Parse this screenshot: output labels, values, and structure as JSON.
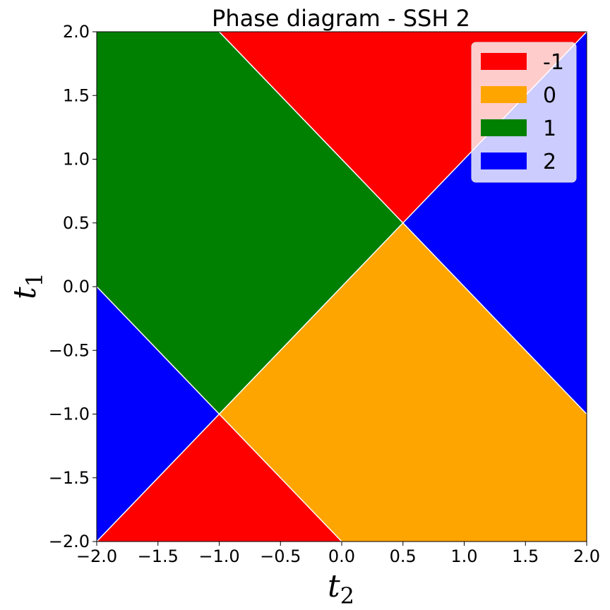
{
  "chart_data": {
    "type": "heatmap",
    "title": "Phase diagram - SSH 2",
    "xlabel": "t",
    "xlabel_sub": "2",
    "ylabel": "t",
    "ylabel_sub": "1",
    "xlim": [
      -2.0,
      2.0
    ],
    "ylim": [
      -2.0,
      2.0
    ],
    "xticks": [
      -2.0,
      -1.5,
      -1.0,
      -0.5,
      0.0,
      0.5,
      1.0,
      1.5,
      2.0
    ],
    "yticks": [
      -2.0,
      -1.5,
      -1.0,
      -0.5,
      0.0,
      0.5,
      1.0,
      1.5,
      2.0
    ],
    "xtick_labels": [
      "−2.0",
      "−1.5",
      "−1.0",
      "−0.5",
      "0.0",
      "0.5",
      "1.0",
      "1.5",
      "2.0"
    ],
    "ytick_labels": [
      "−2.0",
      "−1.5",
      "−1.0",
      "−0.5",
      "0.0",
      "0.5",
      "1.0",
      "1.5",
      "2.0"
    ],
    "grid": false,
    "legend_position": "top-right",
    "phases": [
      {
        "label": "-1",
        "color": "#ff0000"
      },
      {
        "label": "0",
        "color": "#ffa500"
      },
      {
        "label": "1",
        "color": "#008000"
      },
      {
        "label": "2",
        "color": "#0000ff"
      }
    ],
    "boundaries": [
      {
        "equation": "t1 = t2",
        "from": [
          -2.0,
          -2.0
        ],
        "to": [
          2.0,
          2.0
        ]
      },
      {
        "equation": "t1 = 1 - t2",
        "from": [
          -1.0,
          2.0
        ],
        "to": [
          2.0,
          -1.0
        ]
      },
      {
        "equation": "t1 = -1 - t2",
        "from": [
          -2.0,
          0.0
        ],
        "to": [
          0.0,
          -2.0
        ]
      }
    ],
    "regions": [
      {
        "phase": "-1",
        "vertices": [
          [
            -1.0,
            2.0
          ],
          [
            2.0,
            2.0
          ],
          [
            0.5,
            0.5
          ]
        ]
      },
      {
        "phase": "-1",
        "vertices": [
          [
            -1.0,
            -1.0
          ],
          [
            0.0,
            -2.0
          ],
          [
            -2.0,
            -2.0
          ]
        ]
      },
      {
        "phase": "0",
        "vertices": [
          [
            0.5,
            0.5
          ],
          [
            2.0,
            -1.0
          ],
          [
            2.0,
            -2.0
          ],
          [
            0.0,
            -2.0
          ],
          [
            -1.0,
            -1.0
          ]
        ]
      },
      {
        "phase": "1",
        "vertices": [
          [
            -2.0,
            2.0
          ],
          [
            -1.0,
            2.0
          ],
          [
            0.5,
            0.5
          ],
          [
            -1.0,
            -1.0
          ],
          [
            -2.0,
            0.0
          ]
        ]
      },
      {
        "phase": "2",
        "vertices": [
          [
            0.5,
            0.5
          ],
          [
            2.0,
            2.0
          ],
          [
            2.0,
            -1.0
          ]
        ]
      },
      {
        "phase": "2",
        "vertices": [
          [
            -2.0,
            0.0
          ],
          [
            -1.0,
            -1.0
          ],
          [
            -2.0,
            -2.0
          ]
        ]
      }
    ]
  }
}
